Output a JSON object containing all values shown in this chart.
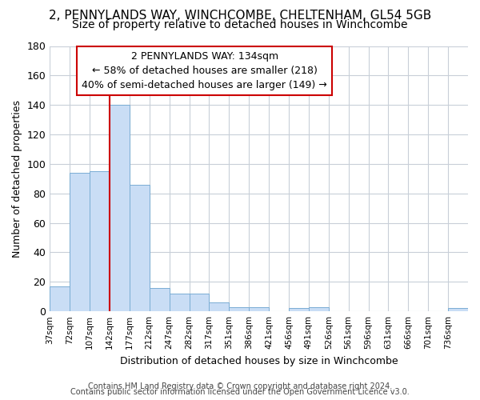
{
  "title_line1": "2, PENNYLANDS WAY, WINCHCOMBE, CHELTENHAM, GL54 5GB",
  "title_line2": "Size of property relative to detached houses in Winchcombe",
  "xlabel": "Distribution of detached houses by size in Winchcombe",
  "ylabel": "Number of detached properties",
  "footer_line1": "Contains HM Land Registry data © Crown copyright and database right 2024.",
  "footer_line2": "Contains public sector information licensed under the Open Government Licence v3.0.",
  "bin_labels": [
    "37sqm",
    "72sqm",
    "107sqm",
    "142sqm",
    "177sqm",
    "212sqm",
    "247sqm",
    "282sqm",
    "317sqm",
    "351sqm",
    "386sqm",
    "421sqm",
    "456sqm",
    "491sqm",
    "526sqm",
    "561sqm",
    "596sqm",
    "631sqm",
    "666sqm",
    "701sqm",
    "736sqm"
  ],
  "bar_values": [
    17,
    94,
    95,
    140,
    86,
    16,
    12,
    12,
    6,
    3,
    3,
    0,
    2,
    3,
    0,
    0,
    0,
    0,
    0,
    0,
    2
  ],
  "bar_color": "#c9ddf5",
  "bar_edge_color": "#7aadd4",
  "grid_color": "#c8cfd8",
  "vline_x": 3,
  "vline_color": "#cc0000",
  "annotation_text": "2 PENNYLANDS WAY: 134sqm\n← 58% of detached houses are smaller (218)\n40% of semi-detached houses are larger (149) →",
  "annotation_box_color": "#ffffff",
  "annotation_box_edge": "#cc0000",
  "ylim": [
    0,
    180
  ],
  "yticks": [
    0,
    20,
    40,
    60,
    80,
    100,
    120,
    140,
    160,
    180
  ],
  "background_color": "#ffffff",
  "title1_fontsize": 11,
  "title2_fontsize": 10,
  "ylabel_fontsize": 9,
  "xlabel_fontsize": 9,
  "footer_fontsize": 7,
  "annot_fontsize": 9
}
